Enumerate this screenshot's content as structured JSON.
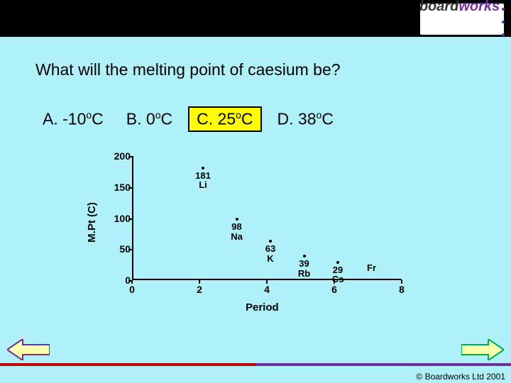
{
  "question": "What will the melting point of caesium be?",
  "choices": {
    "a_pre": "A.  -10",
    "a_sup": "o",
    "a_post": "C",
    "b_pre": "B. 0",
    "b_sup": "o",
    "b_post": "C",
    "c_pre": "C. 25",
    "c_sup": "o",
    "c_post": "C",
    "d_pre": "D.  38",
    "d_sup": "o",
    "d_post": "C",
    "highlight_color": "#ffff00"
  },
  "chart": {
    "type": "scatter",
    "xlabel": "Period",
    "ylabel": "M.Pt (C)",
    "xlim": [
      0,
      8
    ],
    "ylim": [
      0,
      200
    ],
    "yticks": [
      0,
      50,
      100,
      150,
      200
    ],
    "xticks": [
      0,
      2,
      4,
      6,
      8
    ],
    "background_color": "#b0f0f8",
    "axis_color": "#000000",
    "marker": "dot",
    "label_fontsize": 13,
    "label_fontweight": "bold",
    "tick_fontsize": 14,
    "tick_fontweight": "bold",
    "axislabel_fontsize": 15,
    "points": [
      {
        "period": 2,
        "mp": 181,
        "val": "181",
        "elem": "Li"
      },
      {
        "period": 3,
        "mp": 98,
        "val": "98",
        "elem": "Na"
      },
      {
        "period": 4,
        "mp": 63,
        "val": "63",
        "elem": "K"
      },
      {
        "period": 5,
        "mp": 39,
        "val": "39",
        "elem": "Rb"
      },
      {
        "period": 6,
        "mp": 29,
        "val": "29",
        "elem": "Cs"
      },
      {
        "period": 7,
        "mp": null,
        "val": "",
        "elem": "Fr"
      }
    ]
  },
  "logo": {
    "board": "board",
    "works": "works"
  },
  "nav": {
    "left_fill": "#ffffb0",
    "left_stroke": "#7030a0",
    "right_fill": "#ffffb0",
    "right_stroke": "#00b050"
  },
  "footer": "© Boardworks Ltd 2001",
  "strip": {
    "left": "#c00000",
    "right": "#7030a0"
  }
}
